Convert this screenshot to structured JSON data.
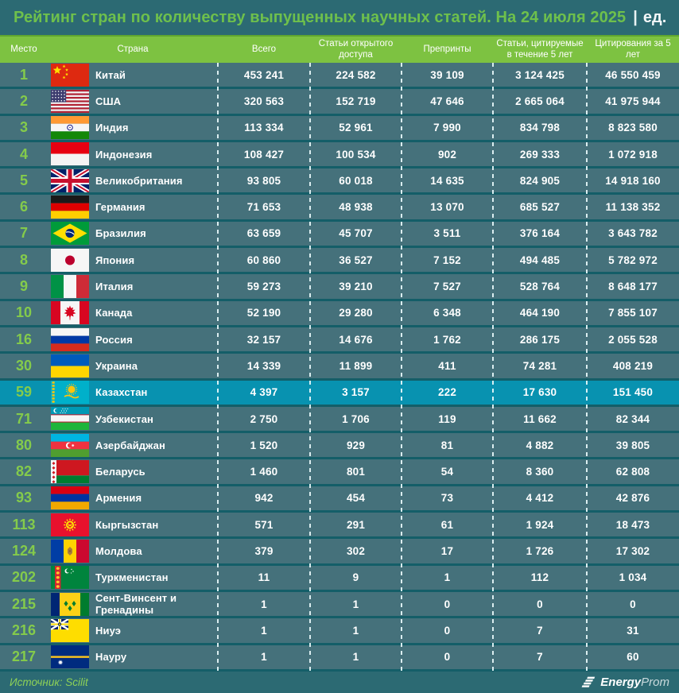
{
  "title": {
    "main": "Рейтинг стран по количеству выпущенных научных статей. На 24 июля 2025",
    "separator": "|",
    "unit": "ед."
  },
  "footer": {
    "source": "Источник: Scilit",
    "logo_bold": "Energy",
    "logo_light": "Prom"
  },
  "colors": {
    "background": "#2C6A73",
    "row": "#45717B",
    "row_gap": "#145E68",
    "highlight_row": "#0892B0",
    "header_green": "#7DC241",
    "title_green": "#6EC04C",
    "rank_green": "#84CB4B",
    "source_green": "#8ED157",
    "text_white": "#FFFFFF"
  },
  "chart_data": {
    "type": "table",
    "title": "Рейтинг стран по количеству выпущенных научных статей. На 24 июля 2025 | ед.",
    "columns": [
      "Место",
      "Страна",
      "Всего",
      "Статьи открытого доступа",
      "Препринты",
      "Статьи, цитируемые в течение 5 лет",
      "Цитирования за 5 лет"
    ],
    "rows": [
      {
        "rank": "1",
        "country": "Китай",
        "flag": "cn",
        "total": "453 241",
        "open_access": "224 582",
        "preprints": "39 109",
        "cited_5y": "3 124 425",
        "citations_5y": "46 550 459",
        "highlight": false
      },
      {
        "rank": "2",
        "country": "США",
        "flag": "us",
        "total": "320 563",
        "open_access": "152 719",
        "preprints": "47 646",
        "cited_5y": "2 665 064",
        "citations_5y": "41 975 944",
        "highlight": false
      },
      {
        "rank": "3",
        "country": "Индия",
        "flag": "in",
        "total": "113 334",
        "open_access": "52 961",
        "preprints": "7 990",
        "cited_5y": "834 798",
        "citations_5y": "8 823 580",
        "highlight": false
      },
      {
        "rank": "4",
        "country": "Индонезия",
        "flag": "id",
        "total": "108 427",
        "open_access": "100 534",
        "preprints": "902",
        "cited_5y": "269 333",
        "citations_5y": "1 072 918",
        "highlight": false
      },
      {
        "rank": "5",
        "country": "Великобритания",
        "flag": "gb",
        "total": "93 805",
        "open_access": "60 018",
        "preprints": "14 635",
        "cited_5y": "824 905",
        "citations_5y": "14 918 160",
        "highlight": false
      },
      {
        "rank": "6",
        "country": "Германия",
        "flag": "de",
        "total": "71 653",
        "open_access": "48 938",
        "preprints": "13 070",
        "cited_5y": "685 527",
        "citations_5y": "11 138 352",
        "highlight": false
      },
      {
        "rank": "7",
        "country": "Бразилия",
        "flag": "br",
        "total": "63 659",
        "open_access": "45 707",
        "preprints": "3 511",
        "cited_5y": "376 164",
        "citations_5y": "3 643 782",
        "highlight": false
      },
      {
        "rank": "8",
        "country": "Япония",
        "flag": "jp",
        "total": "60 860",
        "open_access": "36 527",
        "preprints": "7 152",
        "cited_5y": "494 485",
        "citations_5y": "5 782 972",
        "highlight": false
      },
      {
        "rank": "9",
        "country": "Италия",
        "flag": "it",
        "total": "59 273",
        "open_access": "39 210",
        "preprints": "7 527",
        "cited_5y": "528 764",
        "citations_5y": "8 648 177",
        "highlight": false
      },
      {
        "rank": "10",
        "country": "Канада",
        "flag": "ca",
        "total": "52 190",
        "open_access": "29 280",
        "preprints": "6 348",
        "cited_5y": "464 190",
        "citations_5y": "7 855 107",
        "highlight": false
      },
      {
        "rank": "16",
        "country": "Россия",
        "flag": "ru",
        "total": "32 157",
        "open_access": "14 676",
        "preprints": "1 762",
        "cited_5y": "286 175",
        "citations_5y": "2 055 528",
        "highlight": false
      },
      {
        "rank": "30",
        "country": "Украина",
        "flag": "ua",
        "total": "14 339",
        "open_access": "11 899",
        "preprints": "411",
        "cited_5y": "74 281",
        "citations_5y": "408 219",
        "highlight": false
      },
      {
        "rank": "59",
        "country": "Казахстан",
        "flag": "kz",
        "total": "4 397",
        "open_access": "3 157",
        "preprints": "222",
        "cited_5y": "17 630",
        "citations_5y": "151 450",
        "highlight": true
      },
      {
        "rank": "71",
        "country": "Узбекистан",
        "flag": "uz",
        "total": "2 750",
        "open_access": "1 706",
        "preprints": "119",
        "cited_5y": "11 662",
        "citations_5y": "82 344",
        "highlight": false
      },
      {
        "rank": "80",
        "country": "Азербайджан",
        "flag": "az",
        "total": "1 520",
        "open_access": "929",
        "preprints": "81",
        "cited_5y": "4 882",
        "citations_5y": "39 805",
        "highlight": false
      },
      {
        "rank": "82",
        "country": "Беларусь",
        "flag": "by",
        "total": "1 460",
        "open_access": "801",
        "preprints": "54",
        "cited_5y": "8 360",
        "citations_5y": "62 808",
        "highlight": false
      },
      {
        "rank": "93",
        "country": "Армения",
        "flag": "am",
        "total": "942",
        "open_access": "454",
        "preprints": "73",
        "cited_5y": "4 412",
        "citations_5y": "42 876",
        "highlight": false
      },
      {
        "rank": "113",
        "country": "Кыргызстан",
        "flag": "kg",
        "total": "571",
        "open_access": "291",
        "preprints": "61",
        "cited_5y": "1 924",
        "citations_5y": "18 473",
        "highlight": false
      },
      {
        "rank": "124",
        "country": "Молдова",
        "flag": "md",
        "total": "379",
        "open_access": "302",
        "preprints": "17",
        "cited_5y": "1 726",
        "citations_5y": "17 302",
        "highlight": false
      },
      {
        "rank": "202",
        "country": "Туркменистан",
        "flag": "tm",
        "total": "11",
        "open_access": "9",
        "preprints": "1",
        "cited_5y": "112",
        "citations_5y": "1 034",
        "highlight": false
      },
      {
        "rank": "215",
        "country": "Сент-Винсент и Гренадины",
        "flag": "vc",
        "total": "1",
        "open_access": "1",
        "preprints": "0",
        "cited_5y": "0",
        "citations_5y": "0",
        "highlight": false
      },
      {
        "rank": "216",
        "country": "Ниуэ",
        "flag": "nu",
        "total": "1",
        "open_access": "1",
        "preprints": "0",
        "cited_5y": "7",
        "citations_5y": "31",
        "highlight": false
      },
      {
        "rank": "217",
        "country": "Науру",
        "flag": "nr",
        "total": "1",
        "open_access": "1",
        "preprints": "0",
        "cited_5y": "7",
        "citations_5y": "60",
        "highlight": false
      }
    ]
  }
}
